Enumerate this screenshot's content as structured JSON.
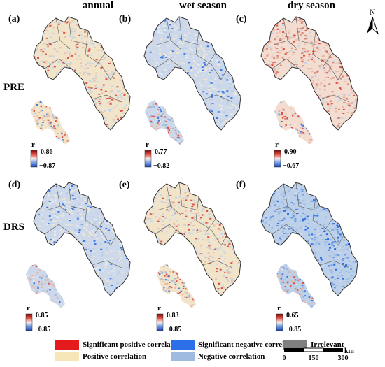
{
  "columns": [
    "annual",
    "wet season",
    "dry season"
  ],
  "rows": [
    "PRE",
    "DRS"
  ],
  "north_label": "N",
  "colorbar_var": "r",
  "panels": [
    {
      "tag": "(a)",
      "max": "0.86",
      "min": "−0.87",
      "tone": "mixed-red"
    },
    {
      "tag": "(b)",
      "max": "0.77",
      "min": "−0.82",
      "tone": "mixed-blue"
    },
    {
      "tag": "(c)",
      "max": "0.90",
      "min": "−0.67",
      "tone": "red"
    },
    {
      "tag": "(d)",
      "max": "0.85",
      "min": "−0.85",
      "tone": "mixed-blue"
    },
    {
      "tag": "(e)",
      "max": "0.83",
      "min": "−0.85",
      "tone": "mixed-red"
    },
    {
      "tag": "(f)",
      "max": "0.65",
      "min": "−0.85",
      "tone": "blue"
    }
  ],
  "legend": {
    "sig_pos": "Significant positive correlation",
    "pos": "Positive correlation",
    "sig_neg": "Significant negative correlation",
    "neg": "Negative correlation",
    "irrelevant": "Irrelevant"
  },
  "colors": {
    "sig_pos": "#e41a1c",
    "pos": "#f7e7b8",
    "sig_neg": "#2c6fe8",
    "neg": "#9fbcdf",
    "irrelevant": "#7f7f7f"
  },
  "scale_bar": {
    "ticks": [
      "0",
      "150",
      "300"
    ],
    "unit": "km"
  }
}
